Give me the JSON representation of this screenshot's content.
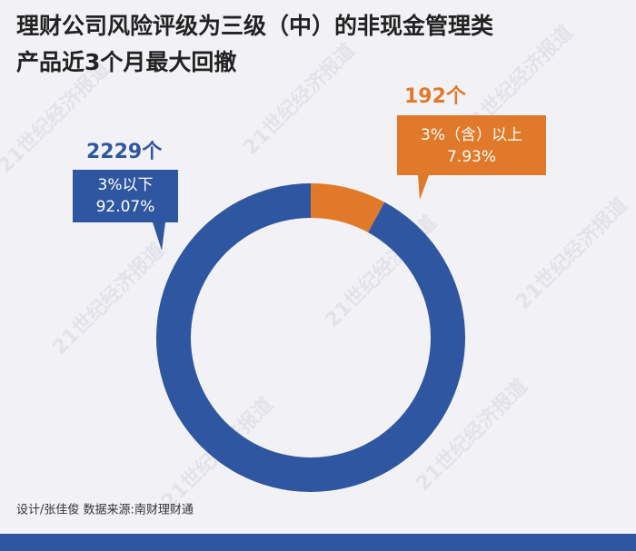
{
  "chart_data": {
    "type": "donut",
    "title": [
      "理财公司风险评级为三级（中）的非现金管理类",
      "产品近3个月最大回撤"
    ],
    "categories": [
      "3%以下",
      "3%（含）以上"
    ],
    "values": [
      92.07,
      7.93
    ],
    "value_labels": [
      "92.07%",
      "7.93%"
    ],
    "counts": [
      2229,
      192
    ],
    "count_labels": [
      "2229个",
      "192个"
    ],
    "colors": [
      "#2f56a0",
      "#e07a2a"
    ],
    "footer": "设计/张佳俊  数据来源:南财理财通",
    "watermark": "21世纪经济报道"
  }
}
